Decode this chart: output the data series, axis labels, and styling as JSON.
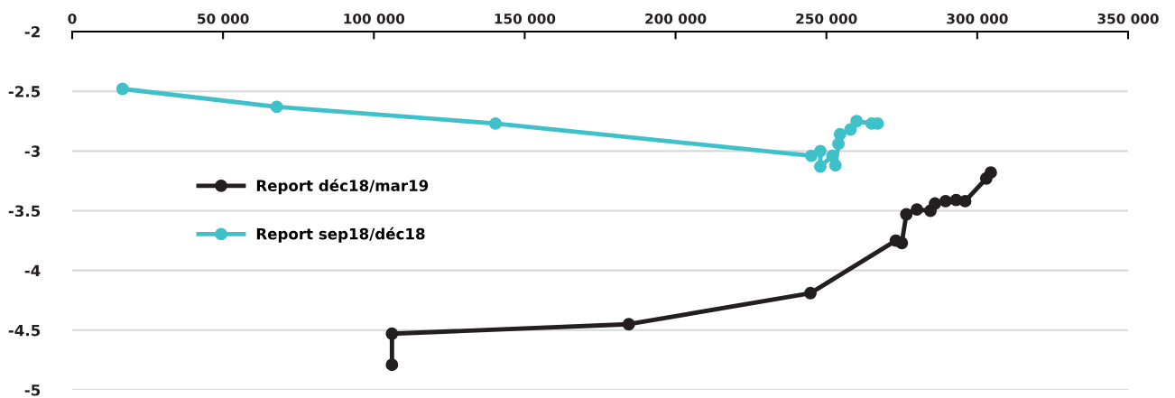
{
  "chart_data": {
    "type": "line",
    "series": [
      {
        "name": "Report déc18/mar19",
        "color": "#231f20",
        "x": [
          106000,
          106000,
          184500,
          244700,
          273000,
          275000,
          276500,
          280000,
          284500,
          286000,
          289500,
          293000,
          296000,
          303000,
          304500
        ],
        "values": [
          -4.79,
          -4.53,
          -4.45,
          -4.19,
          -3.75,
          -3.77,
          -3.53,
          -3.49,
          -3.5,
          -3.44,
          -3.42,
          -3.41,
          -3.42,
          -3.23,
          -3.18
        ]
      },
      {
        "name": "Report sep18/déc18",
        "color": "#3fc1c9",
        "x": [
          16700,
          67800,
          140300,
          245000,
          248000,
          248000,
          252000,
          253000,
          254000,
          254500,
          258000,
          260000,
          265000,
          267000
        ],
        "values": [
          -2.48,
          -2.63,
          -2.77,
          -3.04,
          -3.0,
          -3.13,
          -3.04,
          -3.12,
          -2.94,
          -2.86,
          -2.82,
          -2.75,
          -2.77,
          -2.77
        ]
      }
    ],
    "xlim": [
      0,
      350000
    ],
    "xticks": [
      0,
      {
        "value": 50000,
        "label": "50 000"
      },
      {
        "value": 100000,
        "label": "100 000"
      },
      {
        "value": 150000,
        "label": "150 000"
      },
      {
        "value": 200000,
        "label": "200 000"
      },
      {
        "value": 250000,
        "label": "250 000"
      },
      {
        "value": 300000,
        "label": "300 000"
      },
      {
        "value": 350000,
        "label": "350 000"
      }
    ],
    "ylim": [
      -5,
      -2
    ],
    "yticks": [
      -5,
      -4.5,
      -4,
      -3.5,
      -3,
      -2.5,
      -2
    ],
    "grid": "y",
    "legend": "left",
    "marker": "circle",
    "line_style": "solid"
  }
}
